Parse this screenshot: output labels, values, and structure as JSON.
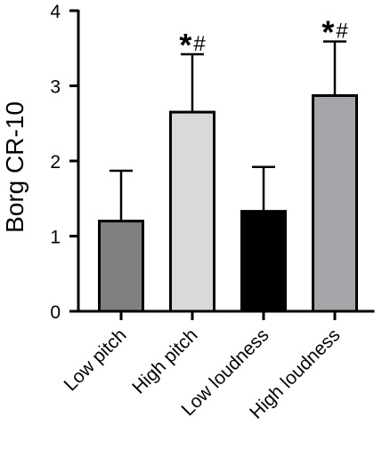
{
  "chart_data": {
    "type": "bar",
    "title": "",
    "xlabel": "",
    "ylabel": "Borg CR-10",
    "ylim": [
      0,
      4
    ],
    "yticks": [
      0,
      1,
      2,
      3,
      4
    ],
    "grid": false,
    "categories": [
      "Low pitch",
      "High pitch",
      "Low loudness",
      "High loudness"
    ],
    "values": [
      1.2,
      2.65,
      1.33,
      2.87
    ],
    "error_upper": [
      0.67,
      0.77,
      0.59,
      0.72
    ],
    "colors": [
      "#808080",
      "#d9d9d9",
      "#000000",
      "#a6a6aa"
    ],
    "annotations": [
      {
        "category": "High pitch",
        "symbols": [
          "*",
          "#"
        ]
      },
      {
        "category": "High loudness",
        "symbols": [
          "*",
          "#"
        ]
      }
    ]
  }
}
